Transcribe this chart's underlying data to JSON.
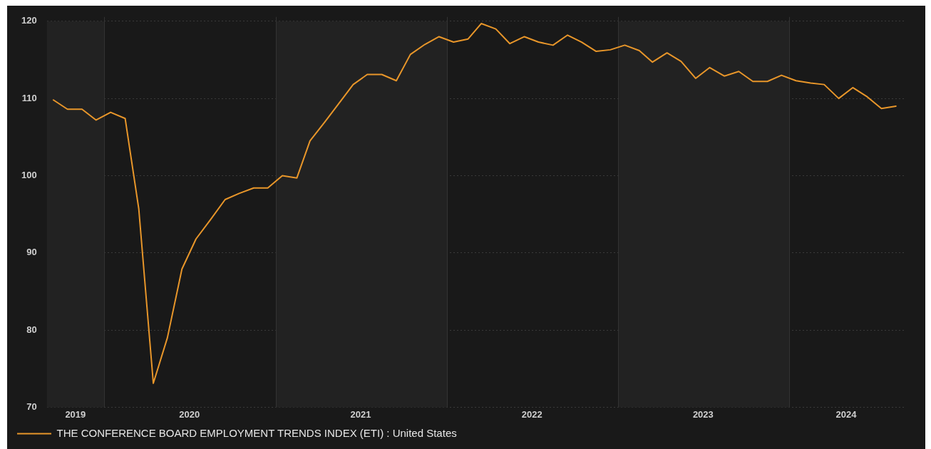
{
  "chart_data": {
    "type": "line",
    "x": [
      "2019-09-15",
      "2019-10-15",
      "2019-11-15",
      "2019-12-15",
      "2020-01-15",
      "2020-02-15",
      "2020-03-15",
      "2020-04-15",
      "2020-05-15",
      "2020-06-15",
      "2020-07-15",
      "2020-08-15",
      "2020-09-15",
      "2020-10-15",
      "2020-11-15",
      "2020-12-15",
      "2021-01-15",
      "2021-02-15",
      "2021-03-15",
      "2021-04-15",
      "2021-05-15",
      "2021-06-15",
      "2021-07-15",
      "2021-08-15",
      "2021-09-15",
      "2021-10-15",
      "2021-11-15",
      "2021-12-15",
      "2022-01-15",
      "2022-02-15",
      "2022-03-15",
      "2022-04-15",
      "2022-05-15",
      "2022-06-15",
      "2022-07-15",
      "2022-08-15",
      "2022-09-15",
      "2022-10-15",
      "2022-11-15",
      "2022-12-15",
      "2023-01-15",
      "2023-02-15",
      "2023-03-15",
      "2023-04-15",
      "2023-05-15",
      "2023-06-15",
      "2023-07-15",
      "2023-08-15",
      "2023-09-15",
      "2023-10-15",
      "2023-11-15",
      "2023-12-15",
      "2024-01-15",
      "2024-02-15",
      "2024-03-15",
      "2024-04-15",
      "2024-05-15",
      "2024-06-15",
      "2024-07-15",
      "2024-08-15"
    ],
    "series": [
      {
        "name": "THE CONFERENCE BOARD EMPLOYMENT TRENDS INDEX (ETI) : United States",
        "color": "#e8962a",
        "values": [
          109.8,
          108.6,
          108.6,
          107.2,
          108.2,
          107.4,
          95.7,
          73.1,
          79.0,
          87.9,
          91.8,
          94.3,
          96.9,
          97.7,
          98.4,
          98.4,
          100.0,
          99.7,
          104.5,
          106.9,
          109.3,
          111.8,
          113.1,
          113.1,
          112.3,
          115.7,
          117.0,
          118.0,
          117.3,
          117.7,
          119.7,
          119.0,
          117.1,
          118.0,
          117.3,
          116.9,
          118.2,
          117.3,
          116.1,
          116.3,
          116.9,
          116.2,
          114.7,
          115.9,
          114.8,
          112.6,
          114.0,
          112.9,
          113.5,
          112.2,
          112.2,
          113.0,
          112.3,
          112.0,
          111.8,
          110.0,
          111.4,
          110.2,
          108.7,
          109.0
        ]
      }
    ],
    "xlim": [
      "2019-09-01",
      "2024-09-01"
    ],
    "xticks": [
      {
        "value": "2019-11-01",
        "label": "2019"
      },
      {
        "value": "2020-07-01",
        "label": "2020"
      },
      {
        "value": "2021-07-01",
        "label": "2021"
      },
      {
        "value": "2022-07-01",
        "label": "2022"
      },
      {
        "value": "2023-07-01",
        "label": "2023"
      },
      {
        "value": "2024-05-01",
        "label": "2024"
      }
    ],
    "ylim": [
      70,
      120
    ],
    "yticks": [
      70,
      80,
      90,
      100,
      110,
      120
    ],
    "bands": [
      {
        "axis": "x",
        "from": "2019-09-01",
        "to": "2020-01-01",
        "color": "#222222"
      },
      {
        "axis": "x",
        "from": "2021-01-01",
        "to": "2022-01-01",
        "color": "#222222"
      },
      {
        "axis": "x",
        "from": "2023-01-01",
        "to": "2024-01-01",
        "color": "#222222"
      }
    ],
    "grid": "y",
    "legend": "bottom left",
    "line_style": "solid",
    "marker": "none"
  }
}
